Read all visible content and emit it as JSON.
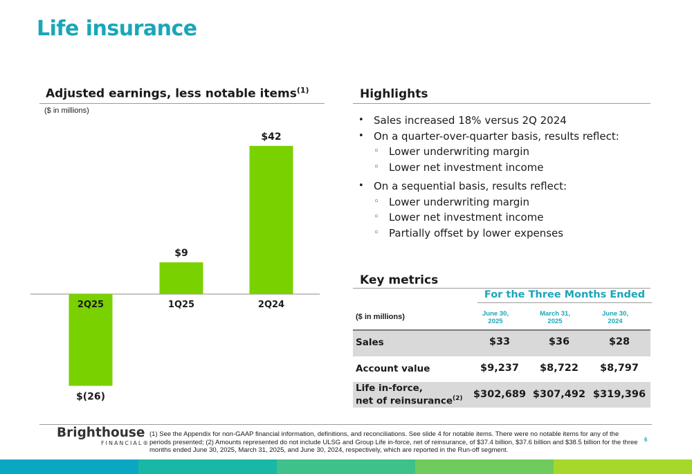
{
  "title": "Life insurance",
  "chart_section": {
    "heading": "Adjusted earnings, less notable items",
    "heading_sup": "(1)",
    "units": "($ in millions)"
  },
  "chart_data": {
    "type": "bar",
    "title": "Adjusted earnings, less notable items",
    "categories": [
      "2Q25",
      "1Q25",
      "2Q24"
    ],
    "values": [
      -26,
      9,
      42
    ],
    "value_labels": [
      "$(26)",
      "$9",
      "$42"
    ],
    "ylabel": "($ in millions)",
    "ylim": [
      -30,
      48
    ],
    "grid": false,
    "bar_color": "#7ad100"
  },
  "highlights": {
    "heading": "Highlights",
    "items": [
      {
        "level": 1,
        "text": "Sales increased 18% versus 2Q 2024"
      },
      {
        "level": 1,
        "text": "On a quarter-over-quarter basis, results reflect:"
      },
      {
        "level": 2,
        "text": "Lower underwriting margin"
      },
      {
        "level": 2,
        "text": "Lower net investment income"
      },
      {
        "level": 1,
        "text": "On a sequential basis, results reflect:"
      },
      {
        "level": 2,
        "text": "Lower underwriting margin"
      },
      {
        "level": 2,
        "text": "Lower net investment income"
      },
      {
        "level": 2,
        "text": "Partially offset by lower expenses"
      }
    ]
  },
  "key_metrics": {
    "heading": "Key metrics",
    "period_header": "For the Three Months Ended",
    "units": "($ in millions)",
    "columns": [
      {
        "line1": "June 30,",
        "line2": "2025"
      },
      {
        "line1": "March 31,",
        "line2": "2025"
      },
      {
        "line1": "June 30,",
        "line2": "2024"
      }
    ],
    "rows": [
      {
        "label": "Sales",
        "values": [
          "$33",
          "$36",
          "$28"
        ]
      },
      {
        "label": "Account value",
        "values": [
          "$9,237",
          "$8,722",
          "$8,797"
        ]
      },
      {
        "label_line1": "Life in-force,",
        "label_line2": "net of reinsurance",
        "label_sup": "(2)",
        "values": [
          "$302,689",
          "$307,492",
          "$319,396"
        ]
      }
    ]
  },
  "footer": {
    "brand": "Brighthouse",
    "brand_sub": "FINANCIAL",
    "brand_mark": "®",
    "footnote": "(1) See the Appendix for non-GAAP financial information, definitions, and reconciliations. See slide 4 for notable items. There were no notable items for any of the periods presented; (2) Amounts represented do not include ULSG and Group Life in-force, net of reinsurance, of $37.4 billion, $37.6 billion and $38.5 billion for the three months ended June 30, 2025, March 31, 2025, and June 30, 2024, respectively, which are reported in the Run-off segment.",
    "page_number": "6"
  },
  "colors": {
    "accent": "#1aa6b7",
    "bar": "#7ad100",
    "stripe": [
      "#0aa7c2",
      "#19b7a6",
      "#3ec18a",
      "#6fcb5c",
      "#a5d82a"
    ]
  }
}
